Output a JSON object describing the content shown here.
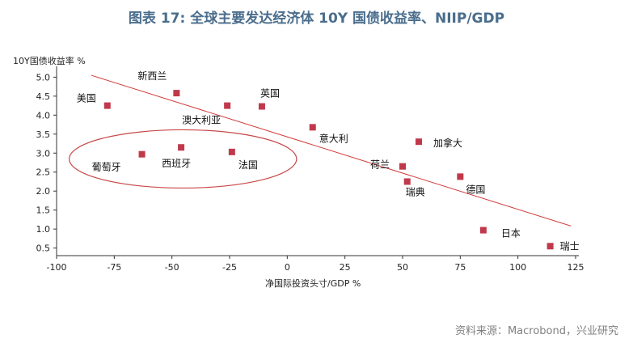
{
  "title": "图表 17: 全球主要发达经济体 10Y 国债收益率、NIIP/GDP",
  "source": "资料来源：Macrobond，兴业研究",
  "colors": {
    "title": "#4a6d8c",
    "marker": "#c0394b",
    "trendline": "#d23b3b",
    "ellipse": "#c84848"
  },
  "chart_data": {
    "type": "scatter",
    "xlabel": "净国际投资头寸/GDP %",
    "ylabel": "10Y国债收益率 %",
    "xlim": [
      -100,
      125
    ],
    "ylim": [
      0.3,
      5.2
    ],
    "xticks": [
      -100,
      -75,
      -50,
      -25,
      0,
      25,
      50,
      75,
      100,
      125
    ],
    "yticks": [
      0.5,
      1.0,
      1.5,
      2.0,
      2.5,
      3.0,
      3.5,
      4.0,
      4.5,
      5.0
    ],
    "xtick_labels": [
      "-100",
      "-75",
      "-50",
      "-25",
      "0",
      "25",
      "50",
      "75",
      "100",
      "125"
    ],
    "ytick_labels": [
      "0.5",
      "1.0",
      "1.5",
      "2.0",
      "2.5",
      "3.0",
      "3.5",
      "4.0",
      "4.5",
      "5.0"
    ],
    "points": [
      {
        "label": "美国",
        "x": -78,
        "y": 4.25
      },
      {
        "label": "新西兰",
        "x": -48,
        "y": 4.58
      },
      {
        "label": "澳大利亚",
        "x": -26,
        "y": 4.25
      },
      {
        "label": "英国",
        "x": -11,
        "y": 4.23
      },
      {
        "label": "意大利",
        "x": 11,
        "y": 3.68
      },
      {
        "label": "加拿大",
        "x": 57,
        "y": 3.3
      },
      {
        "label": "荷兰",
        "x": 50,
        "y": 2.65
      },
      {
        "label": "瑞典",
        "x": 52,
        "y": 2.25
      },
      {
        "label": "德国",
        "x": 75,
        "y": 2.38
      },
      {
        "label": "日本",
        "x": 85,
        "y": 0.97
      },
      {
        "label": "瑞士",
        "x": 114,
        "y": 0.55
      },
      {
        "label": "葡萄牙",
        "x": -63,
        "y": 2.97
      },
      {
        "label": "西班牙",
        "x": -46,
        "y": 3.15
      },
      {
        "label": "法国",
        "x": -24,
        "y": 3.03
      }
    ],
    "trendline": {
      "x": [
        -85,
        123
      ],
      "y": [
        5.05,
        1.08
      ]
    },
    "highlight_group": [
      "葡萄牙",
      "西班牙",
      "法国"
    ],
    "grid": false,
    "legend": "none"
  }
}
